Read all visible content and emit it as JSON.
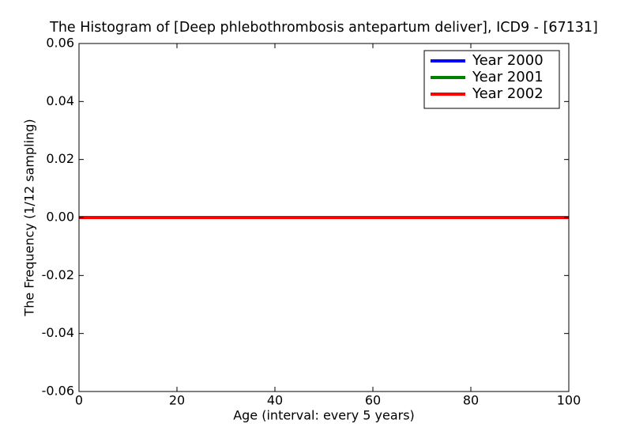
{
  "chart_data": {
    "type": "line",
    "title": "The Histogram of [Deep phlebothrombosis antepartum deliver], ICD9 - [67131]",
    "xlabel": "Age (interval: every 5 years)",
    "ylabel": "The Frequency (1/12 sampling)",
    "x": [
      0,
      5,
      10,
      15,
      20,
      25,
      30,
      35,
      40,
      45,
      50,
      55,
      60,
      65,
      70,
      75,
      80,
      85,
      90,
      95,
      100
    ],
    "series": [
      {
        "name": "Year 2000",
        "color": "#0000ff",
        "values": [
          0,
          0,
          0,
          0,
          0,
          0,
          0,
          0,
          0,
          0,
          0,
          0,
          0,
          0,
          0,
          0,
          0,
          0,
          0,
          0,
          0
        ]
      },
      {
        "name": "Year 2001",
        "color": "#008000",
        "values": [
          0,
          0,
          0,
          0,
          0,
          0,
          0,
          0,
          0,
          0,
          0,
          0,
          0,
          0,
          0,
          0,
          0,
          0,
          0,
          0,
          0
        ]
      },
      {
        "name": "Year 2002",
        "color": "#ff0000",
        "values": [
          0,
          0,
          0,
          0,
          0,
          0,
          0,
          0,
          0,
          0,
          0,
          0,
          0,
          0,
          0,
          0,
          0,
          0,
          0,
          0,
          0
        ]
      }
    ],
    "xlim": [
      0,
      100
    ],
    "xticks": [
      0,
      20,
      40,
      60,
      80,
      100
    ],
    "ylim": [
      -0.06,
      0.06
    ],
    "yticks": [
      -0.06,
      -0.04,
      -0.02,
      {
        "value": 0,
        "label": "0.00"
      },
      0.02,
      0.04,
      0.06
    ],
    "legend": "upper right"
  }
}
